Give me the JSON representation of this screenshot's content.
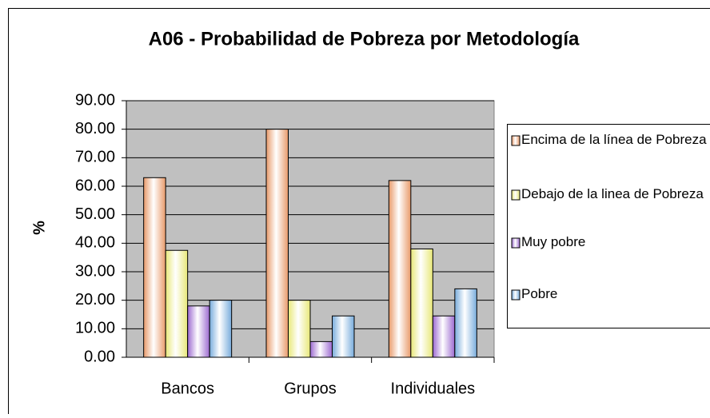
{
  "chart_data": {
    "type": "bar",
    "title": "A06 - Probabilidad de Pobreza por Metodología",
    "y_label": "%",
    "categories": [
      "Bancos",
      "Grupos",
      "Individuales"
    ],
    "series": [
      {
        "name": "Encima de la línea de Pobreza",
        "color": "#e89a6a",
        "values": [
          63,
          80,
          62
        ]
      },
      {
        "name": "Debajo de la linea de Pobreza",
        "color": "#e8e878",
        "values": [
          37.5,
          20,
          38
        ]
      },
      {
        "name": "Muy pobre",
        "color": "#9c6ad0",
        "values": [
          18,
          5.5,
          14.5
        ]
      },
      {
        "name": "Pobre",
        "color": "#78acdc",
        "values": [
          20,
          14.5,
          24
        ]
      }
    ],
    "ylim": [
      0,
      90
    ],
    "yticks": [
      {
        "value": 0,
        "label": "0.00"
      },
      {
        "value": 10,
        "label": "10.00"
      },
      {
        "value": 20,
        "label": "20.00"
      },
      {
        "value": 30,
        "label": "30.00"
      },
      {
        "value": 40,
        "label": "40.00"
      },
      {
        "value": 50,
        "label": "50.00"
      },
      {
        "value": 60,
        "label": "60.00"
      },
      {
        "value": 70,
        "label": "70.00"
      },
      {
        "value": 80,
        "label": "80.00"
      },
      {
        "value": 90,
        "label": "90.00"
      }
    ],
    "grid": true,
    "legend": "right"
  }
}
